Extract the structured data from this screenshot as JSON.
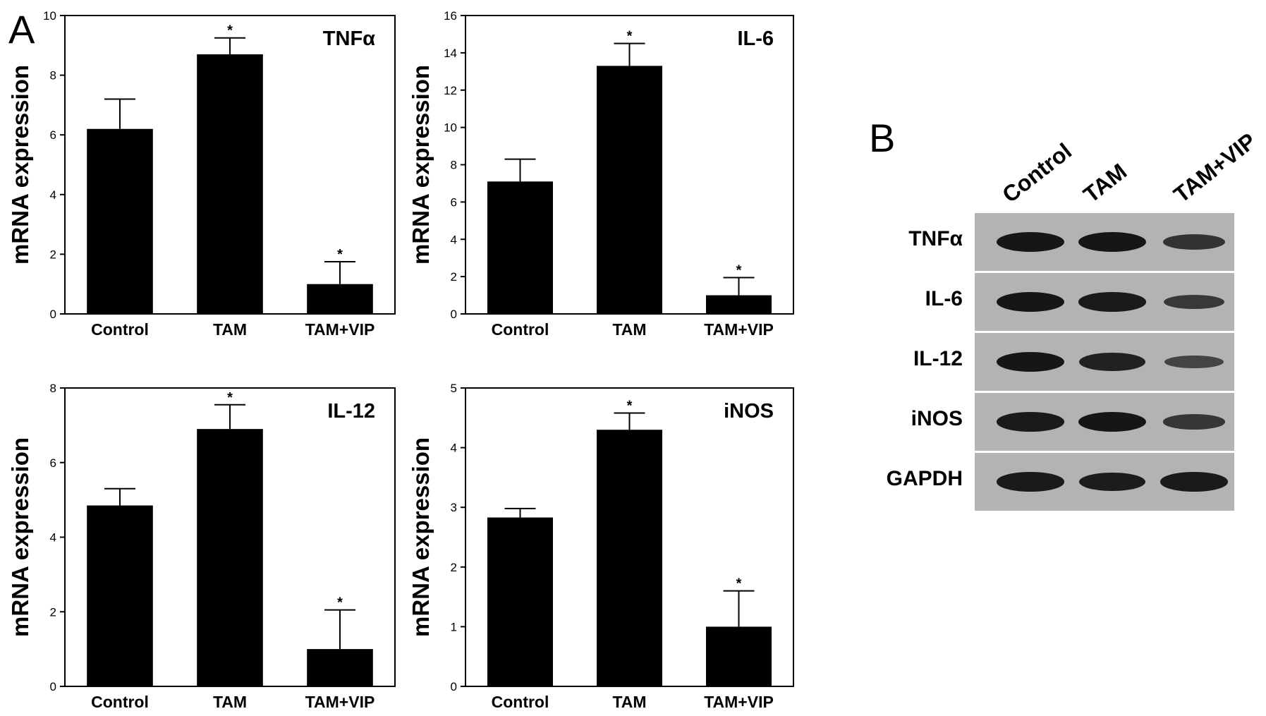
{
  "panel_a_label": "A",
  "panel_b_label": "B",
  "chart_data": [
    {
      "type": "bar",
      "title": "TNFα",
      "categories": [
        "Control",
        "TAM",
        "TAM+VIP"
      ],
      "values": [
        6.2,
        8.7,
        1.0
      ],
      "errors": [
        1.0,
        0.55,
        0.75
      ],
      "significant": [
        "",
        "*",
        "*"
      ],
      "ylabel": "mRNA expression",
      "ylim": [
        0,
        10
      ],
      "yticks": [
        0,
        2,
        4,
        6,
        8,
        10
      ]
    },
    {
      "type": "bar",
      "title": "IL-6",
      "categories": [
        "Control",
        "TAM",
        "TAM+VIP"
      ],
      "values": [
        7.1,
        13.3,
        1.0
      ],
      "errors": [
        1.2,
        1.2,
        0.95
      ],
      "significant": [
        "",
        "*",
        "*"
      ],
      "ylabel": "mRNA expression",
      "ylim": [
        0,
        16
      ],
      "yticks": [
        0,
        2,
        4,
        6,
        8,
        10,
        12,
        14,
        16
      ]
    },
    {
      "type": "bar",
      "title": "IL-12",
      "categories": [
        "Control",
        "TAM",
        "TAM+VIP"
      ],
      "values": [
        4.85,
        6.9,
        1.0
      ],
      "errors": [
        0.45,
        0.65,
        1.05
      ],
      "significant": [
        "",
        "*",
        "*"
      ],
      "ylabel": "mRNA expression",
      "ylim": [
        0,
        8
      ],
      "yticks": [
        0,
        2,
        4,
        6,
        8
      ]
    },
    {
      "type": "bar",
      "title": "iNOS",
      "categories": [
        "Control",
        "TAM",
        "TAM+VIP"
      ],
      "values": [
        2.83,
        4.3,
        1.0
      ],
      "errors": [
        0.15,
        0.28,
        0.6
      ],
      "significant": [
        "",
        "*",
        "*"
      ],
      "ylabel": "mRNA expression",
      "ylim": [
        0,
        5
      ],
      "yticks": [
        0,
        1,
        2,
        3,
        4,
        5
      ]
    }
  ],
  "western_blot": {
    "lanes": [
      "Control",
      "TAM",
      "TAM+VIP"
    ],
    "proteins": [
      {
        "name": "TNFα",
        "band_intensity": [
          1.0,
          1.0,
          0.6
        ]
      },
      {
        "name": "IL-6",
        "band_intensity": [
          1.0,
          0.95,
          0.5
        ]
      },
      {
        "name": "IL-12",
        "band_intensity": [
          1.0,
          0.85,
          0.35
        ]
      },
      {
        "name": "iNOS",
        "band_intensity": [
          0.95,
          1.0,
          0.55
        ]
      },
      {
        "name": "GAPDH",
        "band_intensity": [
          0.95,
          0.9,
          0.95
        ]
      }
    ]
  }
}
